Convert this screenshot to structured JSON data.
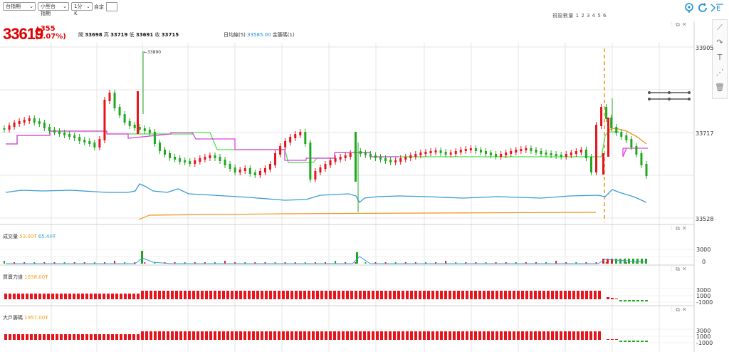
{
  "toolbar": {
    "select_product": "台指期",
    "select_sub": "小型台指期",
    "select_interval": "1分K",
    "custom_label": "自定",
    "view_count_label": "視窗數量 1 2 3 4 5 6"
  },
  "quote": {
    "last": "33619",
    "change": "▲355",
    "change_pct": "(1.07%)",
    "open_label": "開",
    "open": "33698",
    "high_label": "高",
    "high": "33719",
    "low_label": "低",
    "low": "33691",
    "close_label": "收",
    "close": "33715"
  },
  "main_legend": {
    "ma_label": "日均線(5)",
    "ma_value": "33585.00",
    "band_label": "金籌碼(1)"
  },
  "main_axis": {
    "ticks": [
      "33905",
      "33717",
      "33528"
    ],
    "high_marker": "←33890"
  },
  "volume_panel": {
    "label": "成交量",
    "value1": "53.00",
    "value2": "65.40",
    "unit1": "Ŧ",
    "unit2": "Ŧ",
    "ticks": [
      "3000",
      "0"
    ]
  },
  "power_panel": {
    "label": "買賣力道",
    "value": "1638.00",
    "unit": "Ŧ",
    "ticks": [
      "3000",
      "1000",
      "-1000"
    ]
  },
  "big_panel": {
    "label": "大戶籌碼",
    "value": "1957.00",
    "unit": "Ŧ",
    "ticks": [
      "3000",
      "1000",
      "-1000"
    ]
  },
  "colors": {
    "up": "#e8141c",
    "down": "#1fa91f",
    "green_line": "#48e048",
    "magenta_line": "#e040e0",
    "blue_line": "#3a9ad6",
    "orange_line": "#f0901a",
    "grid": "#e6e6e6"
  },
  "icons": {
    "pin": "pin-icon",
    "refresh": "refresh-icon",
    "settings": "settings-icon",
    "line_tool": "line-draw-icon",
    "curve_tool": "curve-draw-icon",
    "text_tool": "text-icon",
    "fan_tool": "fan-icon",
    "trash": "trash-icon"
  }
}
